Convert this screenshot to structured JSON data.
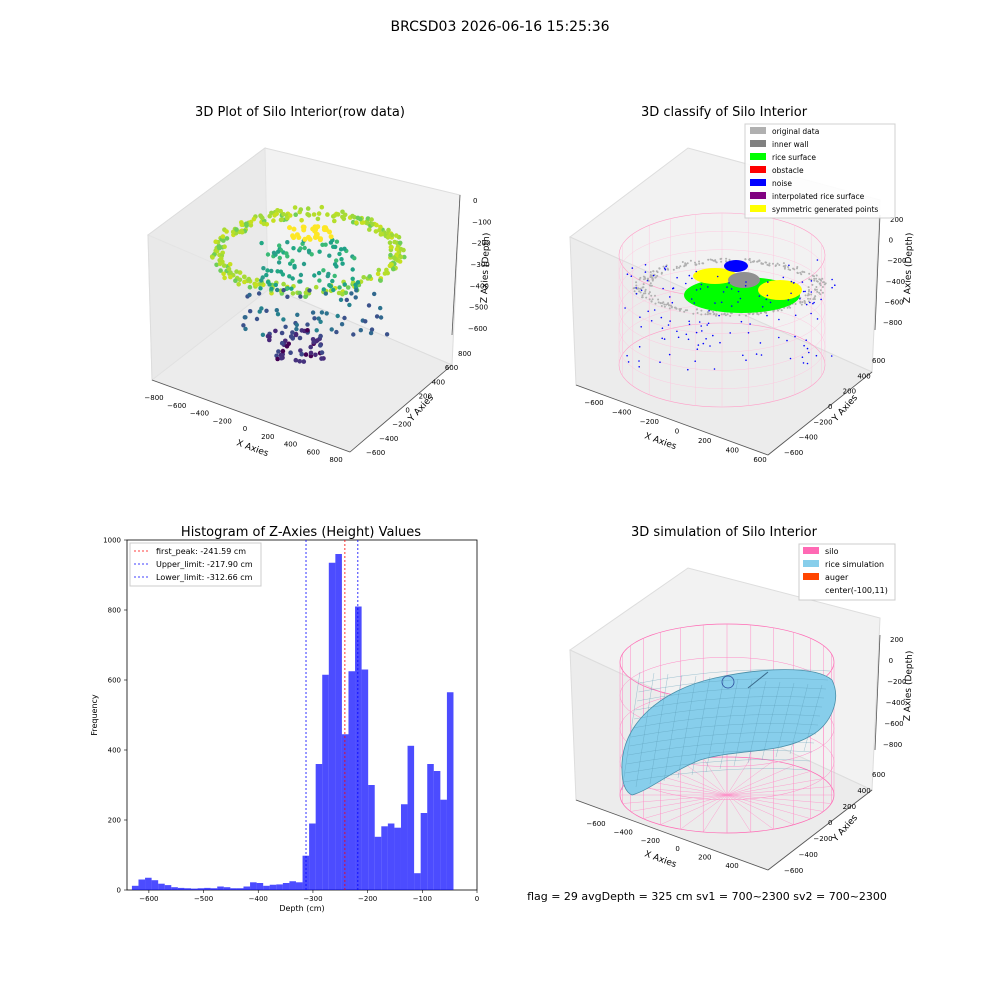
{
  "figure_title": "BRCSD03 2026-06-16 15:25:36",
  "panels": {
    "raw": {
      "title": "3D Plot of Silo Interior(row data)",
      "xlabel": "X Axies",
      "ylabel": "Y Axies",
      "zlabel": "Z Axies (Depth)",
      "x_ticks": [
        "−800",
        "−600",
        "−400",
        "−200",
        "0",
        "200",
        "400",
        "600",
        "800"
      ],
      "y_ticks": [
        "−600",
        "−400",
        "−200",
        "0",
        "200",
        "400",
        "600",
        "800"
      ],
      "z_ticks": [
        "0",
        "−100",
        "−200",
        "−300",
        "−400",
        "−500",
        "−600"
      ]
    },
    "classify": {
      "title": "3D classify of Silo Interior",
      "xlabel": "X Axies",
      "ylabel": "Y Axies",
      "zlabel": "Z Axies (Depth)",
      "x_ticks": [
        "−600",
        "−400",
        "−200",
        "0",
        "200",
        "400",
        "600"
      ],
      "y_ticks": [
        "−600",
        "−400",
        "−200",
        "0",
        "200",
        "400",
        "600"
      ],
      "z_ticks": [
        "200",
        "0",
        "−200",
        "−400",
        "−600",
        "−800"
      ],
      "legend": [
        {
          "label": "original data",
          "color": "#b0b0b0"
        },
        {
          "label": "inner wall",
          "color": "#808080"
        },
        {
          "label": "rice surface",
          "color": "#00ff00"
        },
        {
          "label": "obstacle",
          "color": "#ff0000"
        },
        {
          "label": "noise",
          "color": "#0000ff"
        },
        {
          "label": "interpolated rice surface",
          "color": "#800080"
        },
        {
          "label": "symmetric generated points",
          "color": "#ffff00"
        }
      ]
    },
    "simulation": {
      "title": "3D simulation of Silo Interior",
      "xlabel": "X Axies",
      "ylabel": "Y Axies",
      "zlabel": "Z Axies (Depth)",
      "x_ticks": [
        "−600",
        "−400",
        "−200",
        "0",
        "200",
        "400"
      ],
      "y_ticks": [
        "−600",
        "−400",
        "−200",
        "0",
        "200",
        "400",
        "600"
      ],
      "z_ticks": [
        "200",
        "0",
        "−200",
        "−400",
        "−600",
        "−800"
      ],
      "legend": [
        {
          "label": "silo",
          "color": "#ff69b4"
        },
        {
          "label": "rice simulation",
          "color": "#87ceeb"
        },
        {
          "label": "auger",
          "color": "#ff4500"
        },
        {
          "label": "center(-100,11)",
          "color": ""
        }
      ],
      "status": "flag = 29  avgDepth = 325 cm  sv1 = 700~2300  sv2 = 700~2300"
    }
  },
  "chart_data": {
    "type": "bar",
    "title": "Histogram of Z-Axies (Height) Values",
    "xlabel": "Depth (cm)",
    "ylabel": "Frequency",
    "xlim": [
      -640,
      0
    ],
    "ylim": [
      0,
      1000
    ],
    "x_ticks": [
      -600,
      -500,
      -400,
      -300,
      -200,
      -100,
      0
    ],
    "y_ticks": [
      0,
      200,
      400,
      600,
      800,
      1000
    ],
    "bar_color": "#0000ff",
    "bin_edges": [
      -631,
      -619,
      -607,
      -595,
      -583,
      -571,
      -559,
      -547,
      -535,
      -523,
      -511,
      -499,
      -487,
      -475,
      -463,
      -451,
      -439,
      -427,
      -415,
      -403,
      -391,
      -379,
      -367,
      -355,
      -343,
      -331,
      -319,
      -307,
      -295,
      -283,
      -271,
      -259,
      -247,
      -235,
      -223,
      -211,
      -199,
      -187,
      -175,
      -163,
      -151,
      -139,
      -127,
      -115,
      -103,
      -91,
      -79,
      -67,
      -55,
      -43,
      -31
    ],
    "values": [
      12,
      30,
      35,
      28,
      18,
      14,
      8,
      6,
      5,
      4,
      5,
      6,
      5,
      10,
      8,
      5,
      5,
      10,
      22,
      20,
      12,
      15,
      16,
      20,
      25,
      22,
      98,
      190,
      360,
      615,
      935,
      960,
      445,
      625,
      810,
      630,
      300,
      152,
      182,
      190,
      178,
      245,
      412,
      48,
      220,
      360,
      340,
      258,
      565,
      0
    ],
    "lines": [
      {
        "name": "first_peak: -241.59 cm",
        "x": -241.59,
        "color": "#ff0000"
      },
      {
        "name": "Upper_limit: -217.90 cm",
        "x": -217.9,
        "color": "#0000ff"
      },
      {
        "name": "Lower_limit: -312.66 cm",
        "x": -312.66,
        "color": "#0000ff"
      }
    ]
  }
}
